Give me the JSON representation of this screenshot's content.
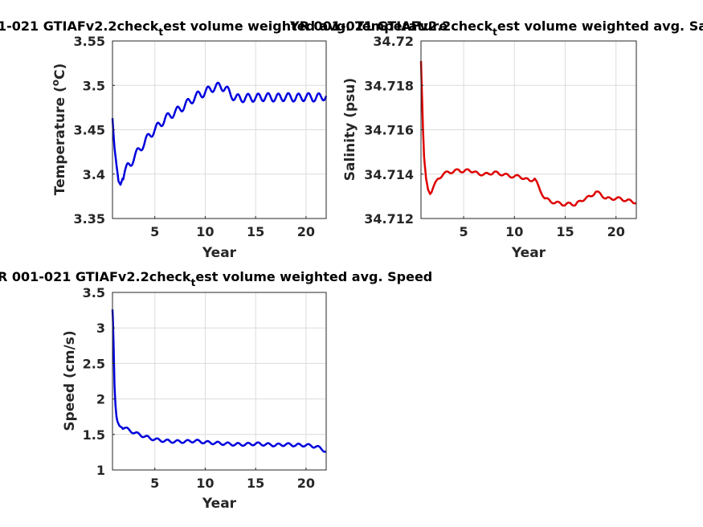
{
  "chart_data": [
    {
      "type": "line",
      "title": "1-021 GTIAFv2.2check",
      "title_sub": "t",
      "title_rest": "est volume weighted avg. Temperature",
      "xlabel": "Year",
      "ylabel": "Temperature (°C)",
      "xlim": [
        0.8,
        22
      ],
      "ylim": [
        3.35,
        3.55
      ],
      "xticks": [
        5,
        10,
        15,
        20
      ],
      "xtick_labels": [
        "5",
        "10",
        "15",
        "20"
      ],
      "yticks": [
        3.35,
        3.4,
        3.45,
        3.5,
        3.55
      ],
      "ytick_labels": [
        "3.35",
        "3.4",
        "3.45",
        "3.5",
        "3.55"
      ],
      "grid": true,
      "color": "#0000dd",
      "series": [
        {
          "x": [
            0.8,
            0.9,
            1.0,
            1.2,
            1.4,
            1.6,
            1.8,
            2.0,
            2.3,
            2.6,
            3.0,
            3.5,
            4.0,
            4.5,
            5.0,
            5.5,
            6.0,
            6.5,
            7.0,
            7.5,
            8.0,
            8.5,
            9.0,
            9.5,
            10.0,
            10.5,
            11.0,
            11.5,
            12.0,
            12.5,
            13.0,
            13.5,
            14.0,
            15.0,
            16.0,
            17.0,
            18.0,
            19.0,
            20.0,
            21.0,
            22.0
          ],
          "y": [
            3.463,
            3.445,
            3.43,
            3.41,
            3.392,
            3.388,
            3.395,
            3.402,
            3.408,
            3.412,
            3.42,
            3.428,
            3.436,
            3.444,
            3.45,
            3.456,
            3.462,
            3.466,
            3.47,
            3.473,
            3.478,
            3.482,
            3.487,
            3.49,
            3.492,
            3.496,
            3.498,
            3.499,
            3.497,
            3.49,
            3.486,
            3.485,
            3.486,
            3.486,
            3.487,
            3.486,
            3.487,
            3.486,
            3.487,
            3.486,
            3.488
          ]
        }
      ]
    },
    {
      "type": "line",
      "title": "YR 001-021 GTIAFv2.2check",
      "title_sub": "t",
      "title_rest": "est volume weighted avg. Salinity",
      "xlabel": "Year",
      "ylabel": "Salinity (psu)",
      "xlim": [
        0.8,
        22
      ],
      "ylim": [
        34.712,
        34.72
      ],
      "xticks": [
        5,
        10,
        15,
        20
      ],
      "xtick_labels": [
        "5",
        "10",
        "15",
        "20"
      ],
      "yticks": [
        34.712,
        34.714,
        34.716,
        34.718,
        34.72
      ],
      "ytick_labels": [
        "34.712",
        "34.714",
        "34.716",
        "34.718",
        "34.72"
      ],
      "grid": true,
      "color": "#dd0000",
      "series": [
        {
          "x": [
            0.8,
            0.9,
            1.0,
            1.1,
            1.3,
            1.5,
            1.7,
            2.0,
            2.5,
            3.0,
            3.5,
            4.0,
            4.5,
            5.0,
            5.5,
            6.0,
            6.5,
            7.0,
            7.5,
            8.0,
            8.5,
            9.0,
            9.5,
            10.0,
            10.5,
            11.0,
            11.5,
            12.0,
            12.5,
            13.0,
            13.5,
            14.0,
            14.5,
            15.0,
            15.5,
            16.0,
            16.5,
            17.0,
            17.5,
            18.0,
            18.5,
            19.0,
            19.5,
            20.0,
            20.5,
            21.0,
            21.5,
            22.0
          ],
          "y": [
            34.7191,
            34.7175,
            34.716,
            34.7148,
            34.7138,
            34.7133,
            34.7131,
            34.7134,
            34.7138,
            34.714,
            34.7141,
            34.7141,
            34.7142,
            34.7141,
            34.7142,
            34.7141,
            34.714,
            34.714,
            34.714,
            34.7141,
            34.714,
            34.714,
            34.7139,
            34.7139,
            34.7139,
            34.7138,
            34.7137,
            34.7138,
            34.7133,
            34.7129,
            34.7128,
            34.7127,
            34.7127,
            34.7126,
            34.7127,
            34.7126,
            34.7128,
            34.7129,
            34.713,
            34.7132,
            34.7131,
            34.7129,
            34.7129,
            34.7129,
            34.7129,
            34.7128,
            34.7128,
            34.7127
          ]
        }
      ]
    },
    {
      "type": "line",
      "title": "R 001-021 GTIAFv2.2check",
      "title_sub": "t",
      "title_rest": "est volume weighted avg. Speed",
      "xlabel": "Year",
      "ylabel": "Speed (cm/s)",
      "xlim": [
        0.8,
        22
      ],
      "ylim": [
        1,
        3.5
      ],
      "xticks": [
        5,
        10,
        15,
        20
      ],
      "xtick_labels": [
        "5",
        "10",
        "15",
        "20"
      ],
      "yticks": [
        1,
        1.5,
        2,
        2.5,
        3,
        3.5
      ],
      "ytick_labels": [
        "1",
        "1.5",
        "2",
        "2.5",
        "3",
        "3.5"
      ],
      "grid": true,
      "color": "#0000dd",
      "series": [
        {
          "x": [
            0.8,
            0.85,
            0.9,
            1.0,
            1.1,
            1.2,
            1.3,
            1.5,
            1.7,
            2.0,
            2.5,
            3.0,
            3.5,
            4.0,
            4.5,
            5.0,
            6.0,
            7.0,
            8.0,
            9.0,
            10.0,
            11.0,
            12.0,
            13.0,
            14.0,
            15.0,
            16.0,
            17.0,
            18.0,
            19.0,
            20.0,
            21.0,
            21.5,
            22.0
          ],
          "y": [
            3.26,
            3.1,
            2.8,
            2.2,
            1.9,
            1.75,
            1.68,
            1.62,
            1.6,
            1.59,
            1.56,
            1.52,
            1.5,
            1.47,
            1.45,
            1.43,
            1.41,
            1.4,
            1.4,
            1.41,
            1.39,
            1.38,
            1.37,
            1.36,
            1.36,
            1.37,
            1.36,
            1.35,
            1.36,
            1.35,
            1.35,
            1.33,
            1.3,
            1.26
          ]
        }
      ]
    }
  ]
}
